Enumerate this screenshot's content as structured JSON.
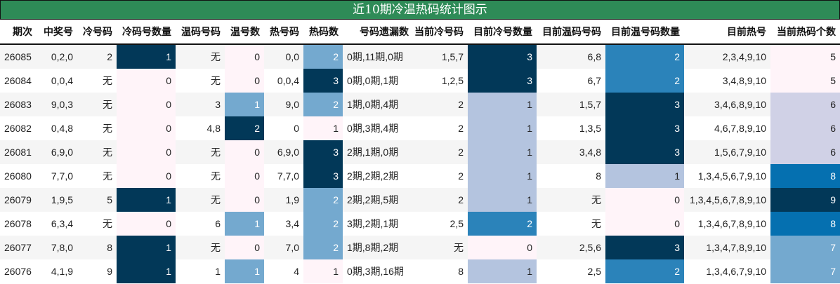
{
  "title": "近10期冷温热码统计图示",
  "columns": [
    "期次",
    "中奖号",
    "冷号码",
    "冷码号数量",
    "温码号码",
    "温号数",
    "热号码",
    "热码数",
    "号码遗漏数",
    "当前冷号码",
    "目前冷号数量",
    "目前温码号码",
    "目前温号码数量",
    "目前热号",
    "当前热码个数"
  ],
  "colors": {
    "title_bg": "#2e8b57",
    "zero": "#fff4f9",
    "light": "#b4c4df",
    "lighter": "#d0d1e6",
    "mid": "#74a9cf",
    "blue": "#2b83ba",
    "blue2": "#0570b0",
    "dark": "#023858"
  },
  "rows": [
    {
      "period": "26085",
      "win": "0,2,0",
      "cold": "2",
      "cold_n": "1",
      "warm": "无",
      "warm_n": "0",
      "hot": "0,0",
      "hot_n": "2",
      "miss": "0期,11期,0期",
      "cur_cold": "1,5,7",
      "cur_cold_n": "3",
      "cur_warm": "6,8",
      "cur_warm_n": "2",
      "cur_hot": "2,3,4,9,10",
      "cur_hot_n": "5"
    },
    {
      "period": "26084",
      "win": "0,0,4",
      "cold": "无",
      "cold_n": "0",
      "warm": "无",
      "warm_n": "0",
      "hot": "0,0,4",
      "hot_n": "3",
      "miss": "0期,0期,1期",
      "cur_cold": "1,2,5",
      "cur_cold_n": "3",
      "cur_warm": "6,7",
      "cur_warm_n": "2",
      "cur_hot": "3,4,8,9,10",
      "cur_hot_n": "5"
    },
    {
      "period": "26083",
      "win": "9,0,3",
      "cold": "无",
      "cold_n": "0",
      "warm": "3",
      "warm_n": "1",
      "hot": "9,0",
      "hot_n": "2",
      "miss": "1期,0期,4期",
      "cur_cold": "2",
      "cur_cold_n": "1",
      "cur_warm": "1,5,7",
      "cur_warm_n": "3",
      "cur_hot": "3,4,6,8,9,10",
      "cur_hot_n": "6"
    },
    {
      "period": "26082",
      "win": "0,4,8",
      "cold": "无",
      "cold_n": "0",
      "warm": "4,8",
      "warm_n": "2",
      "hot": "0",
      "hot_n": "1",
      "miss": "0期,3期,4期",
      "cur_cold": "2",
      "cur_cold_n": "1",
      "cur_warm": "1,3,5",
      "cur_warm_n": "3",
      "cur_hot": "4,6,7,8,9,10",
      "cur_hot_n": "6"
    },
    {
      "period": "26081",
      "win": "6,9,0",
      "cold": "无",
      "cold_n": "0",
      "warm": "无",
      "warm_n": "0",
      "hot": "6,9,0",
      "hot_n": "3",
      "miss": "2期,1期,0期",
      "cur_cold": "2",
      "cur_cold_n": "1",
      "cur_warm": "3,4,8",
      "cur_warm_n": "3",
      "cur_hot": "1,5,6,7,9,10",
      "cur_hot_n": "6"
    },
    {
      "period": "26080",
      "win": "7,7,0",
      "cold": "无",
      "cold_n": "0",
      "warm": "无",
      "warm_n": "0",
      "hot": "7,7,0",
      "hot_n": "3",
      "miss": "2期,2期,2期",
      "cur_cold": "2",
      "cur_cold_n": "1",
      "cur_warm": "8",
      "cur_warm_n": "1",
      "cur_hot": "1,3,4,5,6,7,9,10",
      "cur_hot_n": "8"
    },
    {
      "period": "26079",
      "win": "1,9,5",
      "cold": "5",
      "cold_n": "1",
      "warm": "无",
      "warm_n": "0",
      "hot": "1,9",
      "hot_n": "2",
      "miss": "2期,2期,5期",
      "cur_cold": "2",
      "cur_cold_n": "1",
      "cur_warm": "无",
      "cur_warm_n": "0",
      "cur_hot": "1,3,4,5,6,7,8,9,10",
      "cur_hot_n": "9"
    },
    {
      "period": "26078",
      "win": "6,3,4",
      "cold": "无",
      "cold_n": "0",
      "warm": "6",
      "warm_n": "1",
      "hot": "3,4",
      "hot_n": "2",
      "miss": "3期,2期,1期",
      "cur_cold": "2,5",
      "cur_cold_n": "2",
      "cur_warm": "无",
      "cur_warm_n": "0",
      "cur_hot": "1,3,4,6,7,8,9,10",
      "cur_hot_n": "8"
    },
    {
      "period": "26077",
      "win": "7,8,0",
      "cold": "8",
      "cold_n": "1",
      "warm": "无",
      "warm_n": "0",
      "hot": "7,0",
      "hot_n": "2",
      "miss": "1期,8期,2期",
      "cur_cold": "无",
      "cur_cold_n": "0",
      "cur_warm": "2,5,6",
      "cur_warm_n": "3",
      "cur_hot": "1,3,4,7,8,9,10",
      "cur_hot_n": "7"
    },
    {
      "period": "26076",
      "win": "4,1,9",
      "cold": "9",
      "cold_n": "1",
      "warm": "1",
      "warm_n": "1",
      "hot": "4",
      "hot_n": "1",
      "miss": "0期,3期,16期",
      "cur_cold": "8",
      "cur_cold_n": "1",
      "cur_warm": "2,5",
      "cur_warm_n": "2",
      "cur_hot": "1,3,4,6,7,9,10",
      "cur_hot_n": "7"
    }
  ]
}
